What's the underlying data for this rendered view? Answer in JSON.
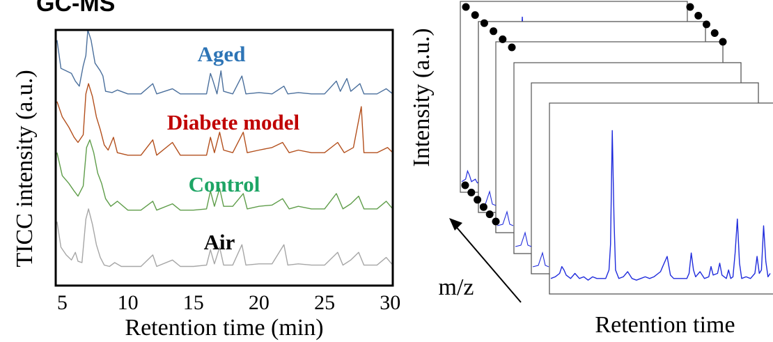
{
  "heading": "GC-MS",
  "chart_data": [
    {
      "type": "line",
      "xlabel": "Retention time (min)",
      "ylabel": "TICC intensity (a.u.)",
      "xlim": [
        4.5,
        30.2
      ],
      "ylim": [
        0,
        100
      ],
      "x_ticks": [
        5,
        10,
        15,
        20,
        25,
        30
      ],
      "x_tick_labels": [
        "5",
        "10",
        "15",
        "20",
        "25",
        "30"
      ],
      "grid": false,
      "series": [
        {
          "name": "Aged",
          "color": "#4a6f9c",
          "label_color": "#2e75b6",
          "baseline": 74.2,
          "points": [
            [
              4.6,
              96
            ],
            [
              4.9,
              85
            ],
            [
              5.3,
              84
            ],
            [
              5.7,
              83
            ],
            [
              6.0,
              80
            ],
            [
              6.3,
              78
            ],
            [
              6.6,
              86
            ],
            [
              6.8,
              90
            ],
            [
              6.95,
              100
            ],
            [
              7.2,
              96
            ],
            [
              7.5,
              87
            ],
            [
              7.9,
              84
            ],
            [
              8.1,
              82
            ],
            [
              8.3,
              76
            ],
            [
              8.8,
              75.5
            ],
            [
              9.2,
              76.5
            ],
            [
              10.0,
              75
            ],
            [
              11.0,
              75
            ],
            [
              11.9,
              79
            ],
            [
              12.2,
              75
            ],
            [
              13.4,
              77
            ],
            [
              14.0,
              75
            ],
            [
              15.0,
              75
            ],
            [
              16.0,
              75
            ],
            [
              16.3,
              83
            ],
            [
              16.5,
              80
            ],
            [
              16.8,
              75
            ],
            [
              17.1,
              84
            ],
            [
              17.3,
              76
            ],
            [
              18.0,
              75
            ],
            [
              18.7,
              82
            ],
            [
              19.0,
              75
            ],
            [
              20.0,
              75.5
            ],
            [
              21.0,
              75
            ],
            [
              21.9,
              78
            ],
            [
              22.2,
              75
            ],
            [
              23.0,
              75.5
            ],
            [
              24.0,
              75
            ],
            [
              25.0,
              75
            ],
            [
              25.9,
              80
            ],
            [
              26.2,
              76
            ],
            [
              26.7,
              81
            ],
            [
              27.0,
              76
            ],
            [
              27.7,
              79
            ],
            [
              28.0,
              75
            ],
            [
              29.0,
              75
            ],
            [
              29.7,
              77
            ],
            [
              30.2,
              75
            ]
          ]
        },
        {
          "name": "Diabete model",
          "color": "#b34f1c",
          "label_color": "#c00000",
          "baseline": 50.0,
          "points": [
            [
              4.6,
              72
            ],
            [
              5.0,
              66
            ],
            [
              5.5,
              62
            ],
            [
              5.9,
              58
            ],
            [
              6.2,
              56
            ],
            [
              6.6,
              59
            ],
            [
              6.8,
              75
            ],
            [
              7.0,
              79
            ],
            [
              7.3,
              74
            ],
            [
              7.6,
              66
            ],
            [
              7.9,
              61
            ],
            [
              8.2,
              55
            ],
            [
              8.5,
              53
            ],
            [
              8.9,
              58
            ],
            [
              9.2,
              52
            ],
            [
              10.0,
              51
            ],
            [
              11.0,
              51
            ],
            [
              11.9,
              57
            ],
            [
              12.2,
              51
            ],
            [
              13.4,
              56
            ],
            [
              14.0,
              51
            ],
            [
              15.0,
              51
            ],
            [
              16.0,
              51
            ],
            [
              16.3,
              58
            ],
            [
              16.6,
              52
            ],
            [
              17.0,
              60
            ],
            [
              17.3,
              53
            ],
            [
              18.0,
              52
            ],
            [
              18.8,
              60
            ],
            [
              19.1,
              52
            ],
            [
              20.0,
              53
            ],
            [
              21.0,
              54
            ],
            [
              21.8,
              56
            ],
            [
              22.3,
              52
            ],
            [
              23.0,
              53
            ],
            [
              24.0,
              52
            ],
            [
              25.0,
              52
            ],
            [
              26.0,
              56
            ],
            [
              26.5,
              52
            ],
            [
              27.2,
              54
            ],
            [
              27.8,
              70
            ],
            [
              28.0,
              52
            ],
            [
              29.0,
              52
            ],
            [
              29.8,
              54
            ],
            [
              30.2,
              52
            ]
          ]
        },
        {
          "name": "Control",
          "color": "#5f9d4a",
          "label_color": "#1ea565",
          "baseline": 28.5,
          "points": [
            [
              4.6,
              52
            ],
            [
              5.0,
              43
            ],
            [
              5.5,
              40
            ],
            [
              5.9,
              37
            ],
            [
              6.2,
              35
            ],
            [
              6.6,
              39
            ],
            [
              6.85,
              54
            ],
            [
              7.1,
              57
            ],
            [
              7.4,
              52
            ],
            [
              7.7,
              44
            ],
            [
              8.0,
              40
            ],
            [
              8.3,
              34
            ],
            [
              8.7,
              31
            ],
            [
              9.2,
              33
            ],
            [
              10.0,
              29.5
            ],
            [
              11.0,
              29.5
            ],
            [
              11.9,
              33
            ],
            [
              12.2,
              29.5
            ],
            [
              13.4,
              32
            ],
            [
              14.0,
              29.5
            ],
            [
              15.0,
              29.5
            ],
            [
              16.0,
              30
            ],
            [
              16.3,
              37
            ],
            [
              16.6,
              31
            ],
            [
              17.0,
              38
            ],
            [
              17.3,
              31
            ],
            [
              18.0,
              31
            ],
            [
              18.8,
              36
            ],
            [
              19.1,
              30
            ],
            [
              20.0,
              31
            ],
            [
              21.0,
              31.5
            ],
            [
              21.8,
              34
            ],
            [
              22.3,
              30
            ],
            [
              23.0,
              31
            ],
            [
              24.0,
              30
            ],
            [
              25.0,
              30
            ],
            [
              25.9,
              36
            ],
            [
              26.4,
              30
            ],
            [
              27.0,
              32
            ],
            [
              27.6,
              35
            ],
            [
              28.0,
              30
            ],
            [
              29.0,
              30
            ],
            [
              29.7,
              33
            ],
            [
              30.2,
              30
            ]
          ]
        },
        {
          "name": "Air",
          "color": "#a6a6a6",
          "label_color": "#000000",
          "baseline": 7.0,
          "points": [
            [
              4.6,
              25
            ],
            [
              4.9,
              15
            ],
            [
              5.3,
              12
            ],
            [
              5.7,
              10
            ],
            [
              6.0,
              13
            ],
            [
              6.2,
              9.5
            ],
            [
              6.5,
              9
            ],
            [
              6.8,
              26
            ],
            [
              7.0,
              30
            ],
            [
              7.3,
              24
            ],
            [
              7.6,
              16
            ],
            [
              7.9,
              11
            ],
            [
              8.2,
              8
            ],
            [
              8.6,
              7.5
            ],
            [
              9.0,
              9
            ],
            [
              9.5,
              7.5
            ],
            [
              10.0,
              7.5
            ],
            [
              11.0,
              7.5
            ],
            [
              11.9,
              12
            ],
            [
              12.2,
              7.5
            ],
            [
              13.4,
              10
            ],
            [
              14.0,
              7.5
            ],
            [
              15.0,
              7.5
            ],
            [
              16.0,
              8
            ],
            [
              16.3,
              14
            ],
            [
              16.6,
              8.5
            ],
            [
              17.0,
              15
            ],
            [
              17.3,
              8
            ],
            [
              18.0,
              8
            ],
            [
              18.7,
              16
            ],
            [
              19.0,
              8
            ],
            [
              20.0,
              8.5
            ],
            [
              21.0,
              8.5
            ],
            [
              21.9,
              16
            ],
            [
              22.2,
              8
            ],
            [
              23.0,
              8.5
            ],
            [
              24.0,
              8
            ],
            [
              25.0,
              8
            ],
            [
              26.0,
              13
            ],
            [
              26.4,
              8
            ],
            [
              27.0,
              10
            ],
            [
              27.6,
              13
            ],
            [
              28.0,
              8
            ],
            [
              29.0,
              8
            ],
            [
              29.7,
              11
            ],
            [
              30.2,
              8
            ]
          ]
        }
      ]
    },
    {
      "type": "line",
      "xlabel": "Retention time",
      "ylabel": "Intensity (a.u.)",
      "depth_axis_label": "m/z",
      "stack_count": 6,
      "grid": false,
      "front_series": {
        "color": "#1f2bdc",
        "ylim": [
          0,
          100
        ],
        "xlim": [
          0,
          100
        ],
        "points": [
          [
            0,
            5
          ],
          [
            2,
            6
          ],
          [
            4,
            8
          ],
          [
            5,
            12
          ],
          [
            6,
            10
          ],
          [
            7,
            7
          ],
          [
            9,
            5
          ],
          [
            11,
            8
          ],
          [
            13,
            5
          ],
          [
            15,
            6
          ],
          [
            17,
            4
          ],
          [
            19,
            6
          ],
          [
            21,
            5
          ],
          [
            23,
            5
          ],
          [
            25,
            5
          ],
          [
            26.5,
            10
          ],
          [
            27.2,
            25
          ],
          [
            28.0,
            92
          ],
          [
            28.8,
            40
          ],
          [
            29.5,
            10
          ],
          [
            31,
            5
          ],
          [
            33,
            6
          ],
          [
            35,
            9
          ],
          [
            37,
            5
          ],
          [
            39,
            4
          ],
          [
            41,
            5
          ],
          [
            43,
            6
          ],
          [
            45,
            5
          ],
          [
            47,
            6
          ],
          [
            50,
            9
          ],
          [
            51,
            12
          ],
          [
            53,
            18
          ],
          [
            54.5,
            7
          ],
          [
            56,
            5
          ],
          [
            58,
            5
          ],
          [
            60,
            5
          ],
          [
            62,
            5
          ],
          [
            63,
            8
          ],
          [
            64,
            20
          ],
          [
            65,
            10
          ],
          [
            66,
            6
          ],
          [
            68,
            9
          ],
          [
            70,
            5
          ],
          [
            72,
            6
          ],
          [
            73,
            12
          ],
          [
            74,
            7
          ],
          [
            76,
            8
          ],
          [
            77,
            14
          ],
          [
            78,
            7
          ],
          [
            80,
            5
          ],
          [
            81,
            10
          ],
          [
            82,
            5
          ],
          [
            83,
            6
          ],
          [
            84,
            20
          ],
          [
            85,
            40
          ],
          [
            86,
            14
          ],
          [
            87,
            5
          ],
          [
            89,
            6
          ],
          [
            91,
            5
          ],
          [
            93,
            8
          ],
          [
            94,
            18
          ],
          [
            95,
            8
          ],
          [
            96,
            10
          ],
          [
            97,
            36
          ],
          [
            98,
            15
          ],
          [
            99,
            6
          ],
          [
            100,
            8
          ]
        ]
      },
      "back_series": {
        "color": "#1f2bdc",
        "points": [
          [
            0,
            8
          ],
          [
            2,
            12
          ],
          [
            3,
            25
          ],
          [
            4,
            18
          ],
          [
            5,
            8
          ],
          [
            7,
            12
          ],
          [
            8,
            6
          ],
          [
            10,
            9
          ],
          [
            12,
            6
          ],
          [
            14,
            7
          ],
          [
            16,
            4
          ],
          [
            18,
            6
          ],
          [
            20,
            5
          ]
        ]
      },
      "back_top_peak": {
        "x": 35,
        "height": 60
      }
    }
  ]
}
